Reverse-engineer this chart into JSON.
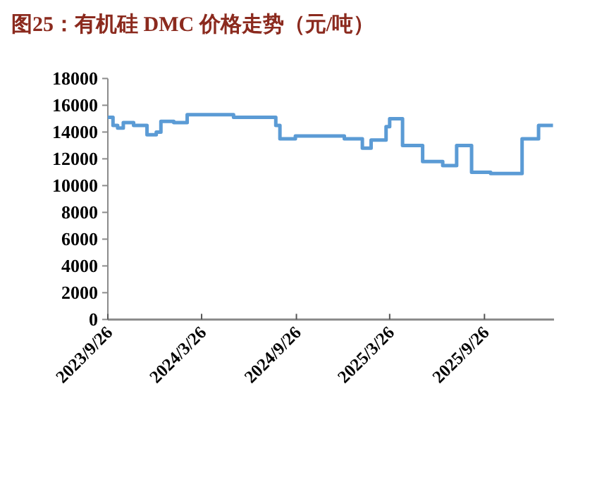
{
  "chart_data": {
    "type": "step",
    "title": "图25：有机硅 DMC 价格走势（元/吨）",
    "x": [
      "2023-09-26",
      "2023-10-06",
      "2023-10-15",
      "2023-10-26",
      "2023-11-15",
      "2023-12-11",
      "2023-12-29",
      "2024-01-07",
      "2024-02-01",
      "2024-02-27",
      "2024-05-27",
      "2024-08-17",
      "2024-08-25",
      "2024-09-24",
      "2024-12-28",
      "2025-02-01",
      "2025-02-18",
      "2025-03-19",
      "2025-03-26",
      "2025-04-20",
      "2025-05-29",
      "2025-07-07",
      "2025-08-03",
      "2025-09-01",
      "2025-10-08",
      "2025-12-08",
      "2026-01-09",
      "2026-02-06"
    ],
    "values": [
      15100,
      14500,
      14300,
      14700,
      14500,
      13800,
      14000,
      14800,
      14700,
      15300,
      15100,
      14500,
      13500,
      13700,
      13500,
      12800,
      13400,
      14400,
      15000,
      13000,
      11800,
      11500,
      13000,
      11000,
      10900,
      13500,
      14500,
      14500
    ],
    "color": "#5b9bd5",
    "xlim": [
      "2023-09-26",
      "2026-02-08"
    ],
    "xticks": [
      {
        "value": "2023-09-26",
        "label": "2023/9/26"
      },
      {
        "value": "2024-03-26",
        "label": "2024/3/26"
      },
      {
        "value": "2024-09-26",
        "label": "2024/9/26"
      },
      {
        "value": "2025-03-26",
        "label": "2025/3/26"
      },
      {
        "value": "2025-09-26",
        "label": "2025/9/26"
      }
    ],
    "ylim": [
      0,
      18000
    ],
    "yticks": [
      0,
      2000,
      4000,
      6000,
      8000,
      10000,
      12000,
      14000,
      16000,
      18000
    ]
  }
}
